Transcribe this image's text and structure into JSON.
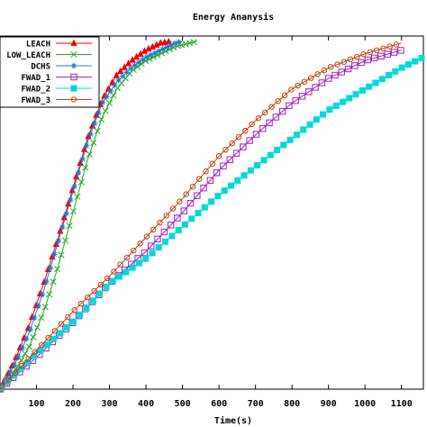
{
  "chart_data": {
    "type": "line",
    "title": "Energy Ananysis",
    "xlabel": "Time(s)",
    "ylabel": "",
    "xlim": [
      0,
      1160
    ],
    "ylim": [
      0,
      100
    ],
    "xticks": [
      100,
      200,
      300,
      400,
      500,
      600,
      700,
      800,
      900,
      1000,
      1100
    ],
    "legend_position": "top-left",
    "grid": false,
    "series": [
      {
        "name": "LEACH",
        "color": "#ee0000",
        "marker": "triangle-filled",
        "x": [
          0,
          40,
          80,
          120,
          160,
          200,
          240,
          280,
          320,
          360,
          400,
          440,
          470
        ],
        "y": [
          0,
          8,
          18,
          30,
          43,
          57,
          71,
          82,
          89,
          93,
          96,
          98,
          98.5
        ]
      },
      {
        "name": "LOW_LEACH",
        "color": "#22aa22",
        "marker": "x",
        "x": [
          0,
          40,
          80,
          120,
          160,
          200,
          240,
          280,
          320,
          360,
          400,
          440,
          480,
          520,
          540
        ],
        "y": [
          0,
          5,
          12,
          22,
          35,
          50,
          65,
          77,
          85,
          90,
          93,
          95,
          97,
          98,
          98.5
        ]
      },
      {
        "name": "DCHS",
        "color": "#1e78d0",
        "marker": "asterisk",
        "x": [
          0,
          40,
          80,
          120,
          160,
          200,
          240,
          280,
          320,
          360,
          400,
          440,
          480,
          500
        ],
        "y": [
          0,
          7,
          16,
          28,
          42,
          56,
          70,
          81,
          87,
          91,
          94,
          96,
          98,
          98.5
        ]
      },
      {
        "name": "FWAD_1",
        "color": "#a020c0",
        "marker": "square-open",
        "x": [
          0,
          100,
          200,
          300,
          400,
          500,
          600,
          700,
          800,
          900,
          1000,
          1100
        ],
        "y": [
          0,
          9,
          19,
          30,
          39,
          50,
          62,
          72,
          81,
          88,
          93,
          96
        ]
      },
      {
        "name": "FWAD_2",
        "color": "#00d8dc",
        "marker": "square-filled",
        "x": [
          0,
          100,
          200,
          300,
          400,
          500,
          600,
          700,
          800,
          900,
          1000,
          1100,
          1160
        ],
        "y": [
          0,
          10,
          19,
          30,
          37,
          46,
          55,
          63,
          71,
          79,
          85,
          91,
          94
        ]
      },
      {
        "name": "FWAD_3",
        "color": "#c04010",
        "marker": "circle-open",
        "x": [
          0,
          100,
          200,
          300,
          400,
          500,
          600,
          700,
          800,
          900,
          1000,
          1100
        ],
        "y": [
          0,
          11,
          22,
          32,
          43,
          54,
          66,
          76,
          85,
          91,
          95,
          98
        ]
      }
    ]
  }
}
